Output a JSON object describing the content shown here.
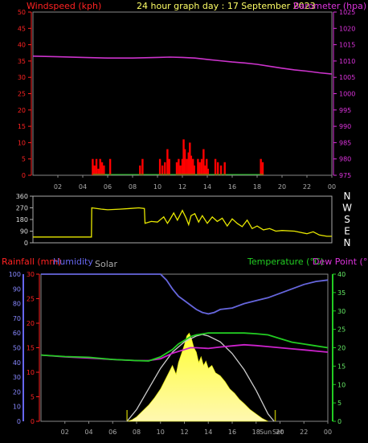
{
  "header": {
    "windspeed_label": "Windspeed (kph)",
    "title": "24 hour graph day : 17 September 2023",
    "barometer_label": "Barometer (hpa)"
  },
  "bottom_header": {
    "rainfall_label": "Rainfall (mm)",
    "humidity_label": "Humidity",
    "solar_label": "Solar",
    "temperature_label": "Temperature (°C)",
    "dewpoint_label": "Dew Point (°C)"
  },
  "colors": {
    "wind": "#ff0000",
    "barometer": "#cc33cc",
    "wind_dir": "#e8e800",
    "humidity": "#6666dd",
    "temperature": "#22cc22",
    "dewpoint": "#cc22cc",
    "solar": "#ffff22",
    "solar_max": "#cccccc",
    "axis_left_top": "#ff2222",
    "axis_right_top": "#dd33dd",
    "axis_left_bottom": "#6666ee",
    "axis_right_bottom": "#22cc22"
  },
  "chart_data": [
    {
      "type": "bar",
      "title": "24 hour graph day : 17 September 2023",
      "xlabel": "",
      "ylabel": "Windspeed (kph)",
      "y2label": "Barometer (hpa)",
      "xlim": [
        0,
        24
      ],
      "ylim": [
        0,
        50
      ],
      "y2lim": [
        975,
        1025
      ],
      "x_ticks": [
        "02",
        "04",
        "06",
        "08",
        "10",
        "12",
        "14",
        "16",
        "18",
        "20",
        "22",
        "00"
      ],
      "y_ticks": [
        0,
        5,
        10,
        15,
        20,
        25,
        30,
        35,
        40,
        45,
        50
      ],
      "y2_ticks": [
        975,
        980,
        985,
        990,
        995,
        1000,
        1005,
        1010,
        1015,
        1020,
        1025
      ],
      "series": [
        {
          "name": "Windspeed (kph)",
          "type": "bar",
          "points": [
            [
              4.8,
              5
            ],
            [
              4.95,
              3
            ],
            [
              5.1,
              5
            ],
            [
              5.25,
              2
            ],
            [
              5.4,
              5
            ],
            [
              5.55,
              4
            ],
            [
              5.7,
              3
            ],
            [
              6.2,
              5
            ],
            [
              8.6,
              3
            ],
            [
              8.8,
              5
            ],
            [
              10.2,
              5
            ],
            [
              10.4,
              3
            ],
            [
              10.6,
              4
            ],
            [
              10.8,
              8
            ],
            [
              10.95,
              5
            ],
            [
              11.55,
              4
            ],
            [
              11.7,
              5
            ],
            [
              11.85,
              3
            ],
            [
              12.0,
              5
            ],
            [
              12.1,
              11
            ],
            [
              12.2,
              8
            ],
            [
              12.35,
              5
            ],
            [
              12.5,
              7
            ],
            [
              12.6,
              10
            ],
            [
              12.7,
              6
            ],
            [
              12.85,
              5
            ],
            [
              12.95,
              3
            ],
            [
              13.25,
              5
            ],
            [
              13.4,
              4
            ],
            [
              13.55,
              5
            ],
            [
              13.7,
              8
            ],
            [
              13.8,
              3
            ],
            [
              13.95,
              5
            ],
            [
              14.05,
              2
            ],
            [
              14.65,
              5
            ],
            [
              14.85,
              4
            ],
            [
              15.1,
              3
            ],
            [
              15.4,
              4
            ],
            [
              18.3,
              5
            ],
            [
              18.45,
              4
            ]
          ]
        },
        {
          "name": "Barometer (hpa)",
          "type": "line",
          "points": [
            [
              0,
              1011.5
            ],
            [
              2,
              1011.3
            ],
            [
              4,
              1011.1
            ],
            [
              6,
              1010.9
            ],
            [
              8,
              1010.9
            ],
            [
              10,
              1011.1
            ],
            [
              11,
              1011.2
            ],
            [
              12,
              1011.1
            ],
            [
              13,
              1010.9
            ],
            [
              14,
              1010.5
            ],
            [
              15,
              1010.1
            ],
            [
              16,
              1009.7
            ],
            [
              17,
              1009.4
            ],
            [
              18,
              1009.0
            ],
            [
              19,
              1008.4
            ],
            [
              20,
              1007.8
            ],
            [
              21,
              1007.3
            ],
            [
              22,
              1006.9
            ],
            [
              23,
              1006.4
            ],
            [
              24,
              1006.0
            ]
          ]
        }
      ]
    },
    {
      "type": "line",
      "title": "",
      "xlabel": "",
      "ylabel": "",
      "xlim": [
        0,
        24
      ],
      "ylim": [
        0,
        360
      ],
      "y_ticks": [
        0,
        90,
        180,
        270,
        360
      ],
      "compass_labels": [
        "N",
        "W",
        "S",
        "E",
        "N"
      ],
      "series": [
        {
          "name": "Wind direction",
          "points": [
            [
              0,
              45
            ],
            [
              4.5,
              45
            ],
            [
              4.7,
              45
            ],
            [
              4.72,
              270
            ],
            [
              5.5,
              260
            ],
            [
              6.0,
              255
            ],
            [
              7.0,
              260
            ],
            [
              7.8,
              265
            ],
            [
              8.5,
              270
            ],
            [
              8.95,
              265
            ],
            [
              9.0,
              150
            ],
            [
              9.5,
              165
            ],
            [
              10.0,
              160
            ],
            [
              10.5,
              200
            ],
            [
              10.8,
              150
            ],
            [
              11.0,
              180
            ],
            [
              11.3,
              230
            ],
            [
              11.6,
              175
            ],
            [
              12.0,
              250
            ],
            [
              12.3,
              190
            ],
            [
              12.5,
              140
            ],
            [
              12.7,
              210
            ],
            [
              13.0,
              225
            ],
            [
              13.3,
              160
            ],
            [
              13.6,
              210
            ],
            [
              14.0,
              150
            ],
            [
              14.4,
              200
            ],
            [
              14.8,
              165
            ],
            [
              15.2,
              190
            ],
            [
              15.6,
              130
            ],
            [
              16.0,
              185
            ],
            [
              16.4,
              150
            ],
            [
              16.8,
              125
            ],
            [
              17.2,
              175
            ],
            [
              17.6,
              110
            ],
            [
              18.0,
              130
            ],
            [
              18.5,
              100
            ],
            [
              19.0,
              110
            ],
            [
              19.5,
              90
            ],
            [
              20.0,
              95
            ],
            [
              21.0,
              90
            ],
            [
              22.0,
              70
            ],
            [
              22.5,
              85
            ],
            [
              23.0,
              60
            ],
            [
              23.6,
              50
            ],
            [
              24,
              50
            ]
          ]
        }
      ]
    },
    {
      "type": "line",
      "title": "",
      "xlabel": "",
      "ylabel": "Humidity",
      "y2label": "Temperature (°C) / Dew Point (°C)",
      "xlim": [
        0,
        24
      ],
      "ylim": [
        0,
        100
      ],
      "y2lim": [
        0,
        40
      ],
      "rain_ylim": [
        0,
        30
      ],
      "x_ticks": [
        "02",
        "04",
        "06",
        "08",
        "10",
        "12",
        "14",
        "16",
        "18",
        "20",
        "22",
        "00"
      ],
      "x_tick_extra": "Sun",
      "x_tick_set": "Set",
      "y_ticks": [
        0,
        10,
        20,
        30,
        40,
        50,
        60,
        70,
        80,
        90,
        100
      ],
      "rain_ticks": [
        0,
        5,
        10,
        15,
        20,
        25,
        30
      ],
      "y2_ticks": [
        0,
        5,
        10,
        15,
        20,
        25,
        30,
        35,
        40
      ],
      "series": [
        {
          "name": "Humidity",
          "points": [
            [
              0,
              100
            ],
            [
              2,
              100
            ],
            [
              4,
              100
            ],
            [
              6,
              100
            ],
            [
              8,
              100
            ],
            [
              9,
              100
            ],
            [
              10,
              100
            ],
            [
              10.5,
              96
            ],
            [
              11,
              90
            ],
            [
              11.5,
              85
            ],
            [
              12,
              82
            ],
            [
              12.5,
              79
            ],
            [
              13,
              76
            ],
            [
              13.5,
              74
            ],
            [
              14,
              73
            ],
            [
              14.5,
              74
            ],
            [
              15,
              76
            ],
            [
              16,
              77
            ],
            [
              17,
              80
            ],
            [
              18,
              82
            ],
            [
              19,
              84
            ],
            [
              20,
              87
            ],
            [
              21,
              90
            ],
            [
              22,
              93
            ],
            [
              23,
              95
            ],
            [
              24,
              96
            ]
          ]
        },
        {
          "name": "Temperature (°C)",
          "points": [
            [
              0,
              18
            ],
            [
              2,
              17.6
            ],
            [
              4,
              17.4
            ],
            [
              6,
              16.8
            ],
            [
              8,
              16.5
            ],
            [
              9,
              16.4
            ],
            [
              10,
              17.5
            ],
            [
              11,
              19.5
            ],
            [
              11.5,
              21
            ],
            [
              12,
              22
            ],
            [
              12.5,
              23
            ],
            [
              13,
              23.5
            ],
            [
              14,
              24
            ],
            [
              15,
              24
            ],
            [
              16,
              24
            ],
            [
              17,
              24
            ],
            [
              18,
              23.8
            ],
            [
              19,
              23.5
            ],
            [
              20,
              22.5
            ],
            [
              21,
              21.5
            ],
            [
              22,
              21
            ],
            [
              23,
              20.5
            ],
            [
              24,
              20
            ]
          ]
        },
        {
          "name": "Dew Point (°C)",
          "points": [
            [
              0,
              18
            ],
            [
              2,
              17.5
            ],
            [
              4,
              17.2
            ],
            [
              6,
              16.8
            ],
            [
              8,
              16.5
            ],
            [
              9,
              16.5
            ],
            [
              10,
              17
            ],
            [
              11,
              18.5
            ],
            [
              12,
              19.5
            ],
            [
              12.5,
              20
            ],
            [
              13,
              20
            ],
            [
              14,
              19.8
            ],
            [
              15,
              20.2
            ],
            [
              16,
              20.5
            ],
            [
              17,
              20.8
            ],
            [
              18,
              20.6
            ],
            [
              19,
              20.3
            ],
            [
              20,
              20
            ],
            [
              21,
              19.7
            ],
            [
              22,
              19.4
            ],
            [
              23,
              19.1
            ],
            [
              24,
              18.8
            ]
          ]
        },
        {
          "name": "Solar",
          "type": "area",
          "points": [
            [
              7.2,
              0
            ],
            [
              7.6,
              1
            ],
            [
              8,
              3
            ],
            [
              8.5,
              7
            ],
            [
              9,
              11
            ],
            [
              9.5,
              16
            ],
            [
              10,
              22
            ],
            [
              10.5,
              30
            ],
            [
              11,
              38
            ],
            [
              11.3,
              32
            ],
            [
              11.5,
              40
            ],
            [
              11.8,
              47
            ],
            [
              12,
              52
            ],
            [
              12.2,
              58
            ],
            [
              12.4,
              60
            ],
            [
              12.6,
              56
            ],
            [
              12.8,
              50
            ],
            [
              13,
              47
            ],
            [
              13.2,
              40
            ],
            [
              13.4,
              44
            ],
            [
              13.6,
              38
            ],
            [
              13.8,
              41
            ],
            [
              14,
              36
            ],
            [
              14.3,
              38
            ],
            [
              14.6,
              33
            ],
            [
              15,
              31
            ],
            [
              15.4,
              27
            ],
            [
              15.8,
              22
            ],
            [
              16.2,
              19
            ],
            [
              16.6,
              15
            ],
            [
              17,
              12
            ],
            [
              17.5,
              8
            ],
            [
              18,
              5
            ],
            [
              18.5,
              2
            ],
            [
              19,
              0
            ]
          ]
        },
        {
          "name": "Solar max",
          "type": "line",
          "points": [
            [
              7.2,
              0
            ],
            [
              8,
              8
            ],
            [
              9,
              22
            ],
            [
              10,
              36
            ],
            [
              11,
              47
            ],
            [
              12,
              54
            ],
            [
              13,
              58
            ],
            [
              13.5,
              59
            ],
            [
              14,
              58
            ],
            [
              15,
              54
            ],
            [
              16,
              46
            ],
            [
              17,
              35
            ],
            [
              18,
              21
            ],
            [
              19,
              5
            ],
            [
              19.5,
              0
            ]
          ]
        }
      ]
    }
  ]
}
